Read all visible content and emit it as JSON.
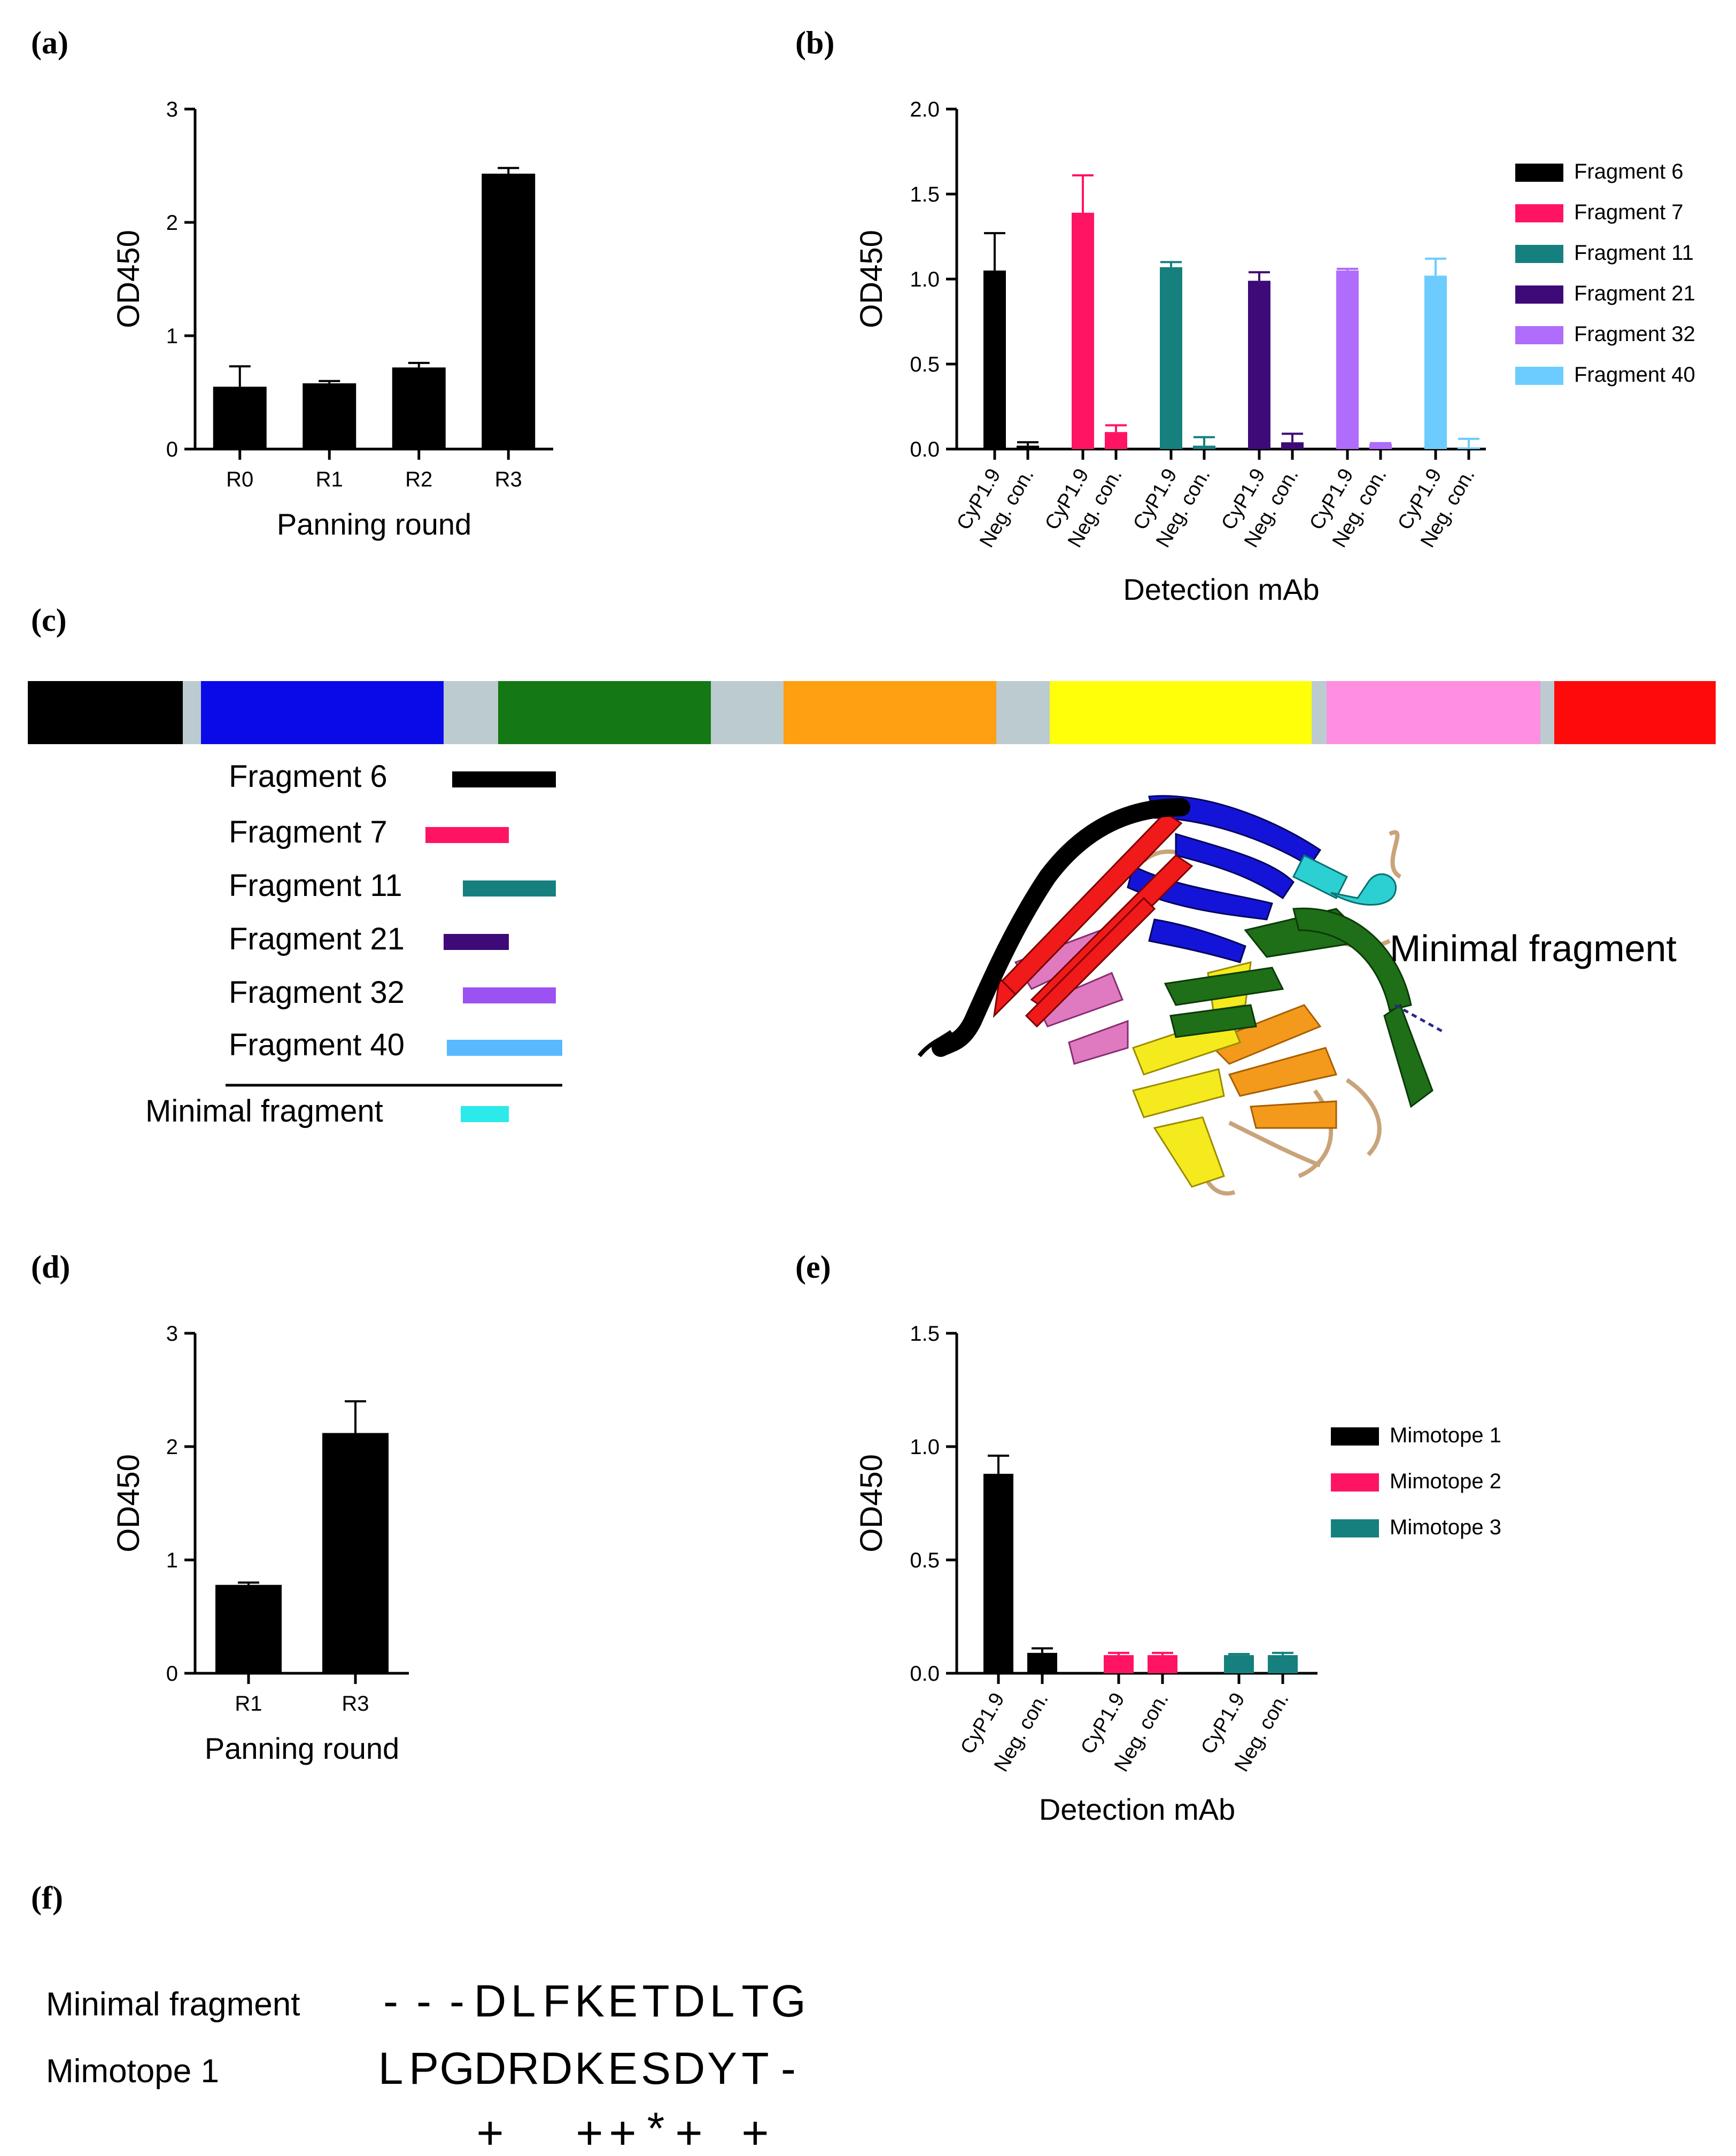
{
  "figure": {
    "panel_labels": [
      "(a)",
      "(b)",
      "(c)",
      "(d)",
      "(e)",
      "(f)"
    ]
  },
  "chart_data": [
    {
      "panel": "(a)",
      "type": "bar",
      "title": "",
      "xlabel": "Panning round",
      "ylabel": "OD450",
      "categories": [
        "R0",
        "R1",
        "R2",
        "R3"
      ],
      "values": [
        0.55,
        0.58,
        0.72,
        2.43
      ],
      "errors": [
        0.18,
        0.02,
        0.04,
        0.05
      ],
      "ylim": [
        0,
        3
      ],
      "yticks": [
        "0",
        "1",
        "2",
        "3"
      ],
      "color": "#000000"
    },
    {
      "panel": "(b)",
      "type": "bar",
      "title": "",
      "xlabel": "Detection mAb",
      "ylabel": "OD450",
      "categories": [
        "CyP1.9",
        "Neg. con."
      ],
      "series": [
        {
          "name": "Fragment 6",
          "color": "#000000",
          "values": [
            1.05,
            0.02
          ],
          "errors": [
            0.22,
            0.02
          ]
        },
        {
          "name": "Fragment 7",
          "color": "#ff1464",
          "values": [
            1.39,
            0.1
          ],
          "errors": [
            0.22,
            0.04
          ]
        },
        {
          "name": "Fragment 11",
          "color": "#16807e",
          "values": [
            1.07,
            0.02
          ],
          "errors": [
            0.03,
            0.05
          ]
        },
        {
          "name": "Fragment 21",
          "color": "#3d0a78",
          "values": [
            0.99,
            0.04
          ],
          "errors": [
            0.05,
            0.05
          ]
        },
        {
          "name": "Fragment 32",
          "color": "#b06cfa",
          "values": [
            1.05,
            0.03
          ],
          "errors": [
            0.01,
            0.005
          ]
        },
        {
          "name": "Fragment 40",
          "color": "#6cccff",
          "values": [
            1.02,
            0.01
          ],
          "errors": [
            0.1,
            0.05
          ]
        }
      ],
      "ylim": [
        0,
        2.0
      ],
      "yticks": [
        "0.0",
        "0.5",
        "1.0",
        "1.5",
        "2.0"
      ],
      "legend": "right"
    },
    {
      "panel": "(d)",
      "type": "bar",
      "title": "",
      "xlabel": "Panning round",
      "ylabel": "OD450",
      "categories": [
        "R1",
        "R3"
      ],
      "values": [
        0.78,
        2.12
      ],
      "errors": [
        0.02,
        0.28
      ],
      "ylim": [
        0,
        3
      ],
      "yticks": [
        "0",
        "1",
        "2",
        "3"
      ],
      "color": "#000000"
    },
    {
      "panel": "(e)",
      "type": "bar",
      "title": "",
      "xlabel": "Detection mAb",
      "ylabel": "OD450",
      "categories": [
        "CyP1.9",
        "Neg. con."
      ],
      "series": [
        {
          "name": "Mimotope 1",
          "color": "#000000",
          "values": [
            0.88,
            0.09
          ],
          "errors": [
            0.08,
            0.02
          ]
        },
        {
          "name": "Mimotope 2",
          "color": "#ff1464",
          "values": [
            0.08,
            0.08
          ],
          "errors": [
            0.01,
            0.01
          ]
        },
        {
          "name": "Mimotope 3",
          "color": "#16807e",
          "values": [
            0.08,
            0.08
          ],
          "errors": [
            0.005,
            0.01
          ]
        }
      ],
      "ylim": [
        0,
        1.5
      ],
      "yticks": [
        "0.0",
        "0.5",
        "1.0",
        "1.5"
      ],
      "legend": "right"
    }
  ],
  "panel_c": {
    "domain_colors": [
      "#000000",
      "#0a0ae8",
      "#147814",
      "#ff9f12",
      "#ffff0a",
      "#ff8fe0",
      "#ff0a0a"
    ],
    "linker_color": "#bccbd0",
    "fragments": [
      {
        "name": "Fragment 6",
        "color": "#000000"
      },
      {
        "name": "Fragment 7",
        "color": "#ff1464"
      },
      {
        "name": "Fragment 11",
        "color": "#16807e"
      },
      {
        "name": "Fragment 21",
        "color": "#3d0a78"
      },
      {
        "name": "Fragment 32",
        "color": "#9c52f2"
      },
      {
        "name": "Fragment 40",
        "color": "#5ab8ff"
      }
    ],
    "minimal": {
      "name": "Minimal fragment",
      "color": "#2ceaea"
    },
    "structure_annotation": "Minimal fragment",
    "annotation_color": "#22c5c7"
  },
  "panel_f": {
    "rows": [
      {
        "label": "Minimal fragment",
        "residues": [
          "-",
          "-",
          "-",
          "D",
          "L",
          "F",
          "K",
          "E",
          "T",
          "D",
          "L",
          "T",
          "G"
        ]
      },
      {
        "label": "Mimotope 1",
        "residues": [
          "L",
          "P",
          "G",
          "D",
          "R",
          "D",
          "K",
          "E",
          "S",
          "D",
          "Y",
          "T",
          "-"
        ]
      }
    ],
    "marks": [
      "",
      "",
      "",
      "+",
      "",
      "",
      "+",
      "+",
      "*",
      "+",
      "",
      "+",
      ""
    ]
  }
}
